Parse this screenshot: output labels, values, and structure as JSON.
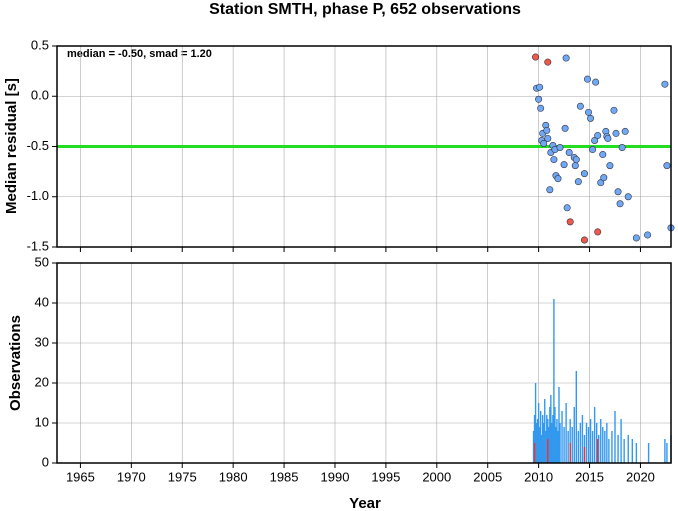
{
  "chart_data": [
    {
      "type": "scatter",
      "title": "Station SMTH, phase P, 652 observations",
      "ylabel": "Median residual [s]",
      "annotation": "median = -0.50, smad = 1.20",
      "xlim": [
        1962.7,
        2023.0
      ],
      "xticks": [
        1965,
        1970,
        1975,
        1980,
        1985,
        1990,
        1995,
        2000,
        2005,
        2010,
        2015,
        2020
      ],
      "ylim": [
        -1.5,
        0.5
      ],
      "yticks": [
        0.5,
        {
          "value": 0,
          "label": "0.0"
        },
        -0.5,
        {
          "value": -1,
          "label": "-1.0"
        },
        -1.5
      ],
      "grid": true,
      "hline": -0.5,
      "hline_color": "#22dd22",
      "series": [
        {
          "color": "#6fa8f5",
          "x": [
            2009.8,
            2010.0,
            2010.1,
            2010.2,
            2010.3,
            2010.4,
            2010.5,
            2010.7,
            2010.8,
            2010.9,
            2011.1,
            2011.2,
            2011.4,
            2011.5,
            2011.6,
            2011.7,
            2011.9,
            2012.1,
            2012.5,
            2012.6,
            2012.7,
            2012.8,
            2013.0,
            2013.5,
            2013.6,
            2013.7,
            2013.9,
            2014.1,
            2014.5,
            2014.8,
            2014.9,
            2015.1,
            2015.3,
            2015.5,
            2015.6,
            2015.8,
            2016.1,
            2016.3,
            2016.4,
            2016.6,
            2016.7,
            2016.8,
            2017.0,
            2017.4,
            2017.6,
            2017.8,
            2018.0,
            2018.2,
            2018.5,
            2018.8,
            2019.6,
            2020.7,
            2022.4,
            2022.6,
            2023.0
          ],
          "values": [
            0.08,
            -0.03,
            0.09,
            -0.12,
            -0.44,
            -0.37,
            -0.47,
            -0.29,
            -0.34,
            -0.42,
            -0.93,
            -0.56,
            -0.49,
            -0.63,
            -0.53,
            -0.79,
            -0.82,
            -0.51,
            -0.68,
            -0.32,
            0.38,
            -1.11,
            -0.56,
            -0.61,
            -0.69,
            -0.63,
            -0.85,
            -0.1,
            -0.77,
            0.17,
            -0.16,
            -0.22,
            -0.53,
            -0.44,
            0.14,
            -0.39,
            -0.86,
            -0.58,
            -0.81,
            -0.35,
            -0.4,
            -0.42,
            -0.69,
            -0.14,
            -0.37,
            -0.95,
            -1.07,
            -0.51,
            -0.35,
            -1.0,
            -1.41,
            -1.38,
            0.12,
            -0.69,
            -1.31
          ]
        },
        {
          "color": "#f0584a",
          "x": [
            2009.7,
            2010.9,
            2013.1,
            2014.5,
            2015.8
          ],
          "values": [
            0.39,
            0.34,
            -1.25,
            -1.43,
            -1.35
          ]
        }
      ]
    },
    {
      "type": "bar",
      "xlabel": "Year",
      "ylabel": "Observations",
      "xlim": [
        1962.7,
        2023.0
      ],
      "xticks": [
        1965,
        1970,
        1975,
        1980,
        1985,
        1990,
        1995,
        2000,
        2005,
        2010,
        2015,
        2020
      ],
      "ylim": [
        0,
        50
      ],
      "yticks": [
        0,
        10,
        20,
        30,
        40,
        50
      ],
      "grid": true,
      "series": [
        {
          "color": "#3399ee",
          "x": [
            2009.5,
            2009.6,
            2009.7,
            2009.8,
            2009.9,
            2010.0,
            2010.1,
            2010.2,
            2010.3,
            2010.4,
            2010.5,
            2010.6,
            2010.7,
            2010.8,
            2010.9,
            2011.0,
            2011.1,
            2011.2,
            2011.3,
            2011.4,
            2011.5,
            2011.6,
            2011.7,
            2011.8,
            2011.9,
            2012.0,
            2012.1,
            2012.3,
            2012.5,
            2012.7,
            2012.9,
            2013.1,
            2013.3,
            2013.5,
            2013.7,
            2013.9,
            2014.1,
            2014.3,
            2014.5,
            2014.7,
            2014.9,
            2015.1,
            2015.3,
            2015.5,
            2015.7,
            2015.9,
            2016.1,
            2016.3,
            2016.5,
            2016.7,
            2016.9,
            2017.2,
            2017.5,
            2017.8,
            2018.1,
            2018.4,
            2018.8,
            2019.2,
            2019.6,
            2020.8,
            2022.4,
            2022.6,
            2023.0
          ],
          "values": [
            8,
            12,
            20,
            10,
            11,
            15,
            9,
            13,
            7,
            12,
            10,
            16,
            8,
            12,
            11,
            9,
            14,
            17,
            10,
            12,
            41,
            14,
            9,
            11,
            8,
            19,
            10,
            13,
            9,
            15,
            8,
            11,
            9,
            14,
            23,
            8,
            10,
            12,
            7,
            10,
            9,
            11,
            8,
            14,
            10,
            7,
            11,
            9,
            8,
            10,
            6,
            8,
            13,
            7,
            11,
            6,
            7,
            6,
            5,
            5,
            6,
            5,
            7
          ]
        },
        {
          "color": "#ee3333",
          "x": [
            2009.6,
            2010.9,
            2013.1,
            2014.5,
            2015.8
          ],
          "values": [
            5,
            6,
            5,
            4,
            6
          ]
        }
      ]
    }
  ]
}
